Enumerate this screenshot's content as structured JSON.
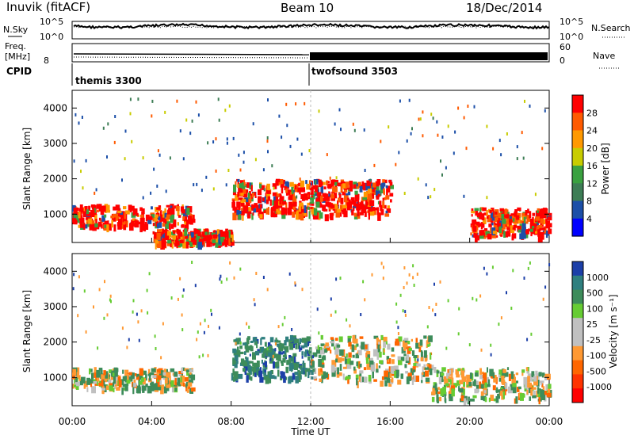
{
  "header": {
    "station": "Inuvik (fitACF)",
    "beam": "Beam 10",
    "date": "18/Dec/2014"
  },
  "top_panels": {
    "nsky_label": "N.Sky",
    "nsearch_label": "N.Search",
    "nsky_ticks": [
      "10^5",
      "10^0"
    ],
    "nsearch_ticks": [
      "10^5",
      "10^0"
    ],
    "freq_label_line1": "Freq.",
    "freq_label_line2": "[MHz]",
    "freq_tick": "8",
    "nave_label": "Nave",
    "nave_ticks": [
      "60",
      "0"
    ],
    "cpid_label": "CPID",
    "cpid_1": "themis 3300",
    "cpid_2": "twofsound 3503"
  },
  "chart_data": [
    {
      "type": "heatmap",
      "title": "",
      "ylabel": "Slant Range [km]",
      "xlabel": "",
      "x_ticks": [
        "00:00",
        "04:00",
        "08:00",
        "12:00",
        "16:00",
        "20:00",
        "00:00"
      ],
      "y_ticks": [
        1000,
        2000,
        3000,
        4000
      ],
      "ylim": [
        200,
        4500
      ],
      "colorbar": {
        "label": "Power [dB]",
        "ticks": [
          "28",
          "24",
          "20",
          "16",
          "12",
          "8",
          "4"
        ]
      },
      "colors": [
        "#0000ff",
        "#1c4fa8",
        "#3d7d55",
        "#3aa140",
        "#c8cc00",
        "#ff9900",
        "#ff5a00",
        "#ff0000"
      ],
      "bands": [
        {
          "x": [
            0,
            6
          ],
          "range": [
            700,
            1300
          ],
          "level": "high"
        },
        {
          "x": [
            4,
            8
          ],
          "range": [
            200,
            600
          ],
          "level": "high"
        },
        {
          "x": [
            8,
            12
          ],
          "range": [
            1000,
            2000
          ],
          "level": "high"
        },
        {
          "x": [
            12,
            16
          ],
          "range": [
            1000,
            2000
          ],
          "level": "high"
        },
        {
          "x": [
            20,
            24
          ],
          "range": [
            400,
            1200
          ],
          "level": "high"
        }
      ]
    },
    {
      "type": "heatmap",
      "title": "",
      "ylabel": "Slant Range [km]",
      "xlabel": "Time UT",
      "x_ticks": [
        "00:00",
        "04:00",
        "08:00",
        "12:00",
        "16:00",
        "20:00",
        "00:00"
      ],
      "y_ticks": [
        1000,
        2000,
        3000,
        4000
      ],
      "ylim": [
        200,
        4500
      ],
      "colorbar": {
        "label": "Velocity [m s⁻¹]",
        "ticks": [
          "1000",
          "500",
          "100",
          "25",
          "-25",
          "-100",
          "-500",
          "-1000"
        ]
      },
      "colors": [
        "#ff0000",
        "#ff3300",
        "#ff6600",
        "#ff9933",
        "#c0c0c0",
        "#c0c0c0",
        "#66cc33",
        "#3d8c5a",
        "#2f7f7f",
        "#1c3fa8"
      ],
      "bands": [
        {
          "x": [
            0,
            6
          ],
          "range": [
            700,
            1300
          ],
          "level": "mixed"
        },
        {
          "x": [
            8,
            12
          ],
          "range": [
            1000,
            2200
          ],
          "level": "positive"
        },
        {
          "x": [
            12,
            18
          ],
          "range": [
            900,
            2200
          ],
          "level": "mixed"
        },
        {
          "x": [
            18,
            24
          ],
          "range": [
            400,
            1300
          ],
          "level": "mixed"
        }
      ]
    }
  ]
}
